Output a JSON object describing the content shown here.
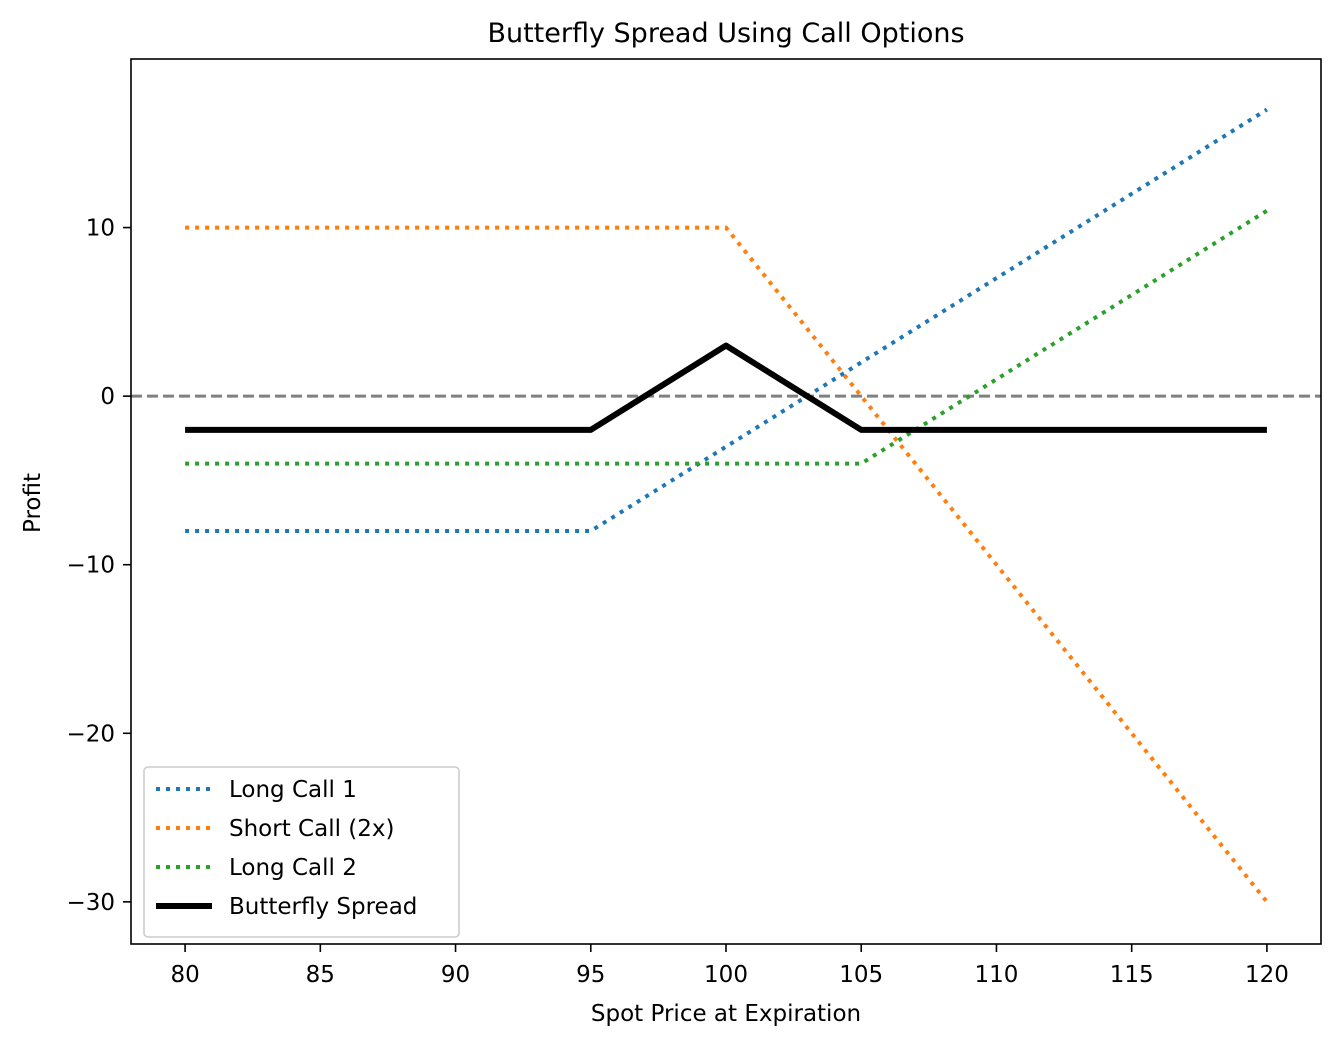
{
  "chart_data": {
    "type": "line",
    "title": "Butterfly Spread Using Call Options",
    "xlabel": "Spot Price at Expiration",
    "ylabel": "Profit",
    "xlim": [
      78,
      122
    ],
    "ylim": [
      -32.5,
      20
    ],
    "xticks": [
      80,
      85,
      90,
      95,
      100,
      105,
      110,
      115,
      120
    ],
    "yticks": [
      -30,
      -20,
      -10,
      0,
      10
    ],
    "grid": false,
    "legend_position": "lower-left",
    "reference_line": {
      "y": 0,
      "style": "dashed",
      "color": "#808080"
    },
    "series": [
      {
        "name": "Long Call 1",
        "color": "#1f77b4",
        "style": "dotted",
        "x": [
          80,
          95,
          120
        ],
        "y": [
          -8,
          -8,
          17
        ]
      },
      {
        "name": "Short Call (2x)",
        "color": "#ff7f0e",
        "style": "dotted",
        "x": [
          80,
          100,
          120
        ],
        "y": [
          10,
          10,
          -30
        ]
      },
      {
        "name": "Long Call 2",
        "color": "#2ca02c",
        "style": "dotted",
        "x": [
          80,
          105,
          120
        ],
        "y": [
          -4,
          -4,
          11
        ]
      },
      {
        "name": "Butterfly Spread",
        "color": "#000000",
        "style": "solid",
        "x": [
          80,
          95,
          100,
          105,
          120
        ],
        "y": [
          -2,
          -2,
          3,
          -2,
          -2
        ]
      }
    ]
  }
}
